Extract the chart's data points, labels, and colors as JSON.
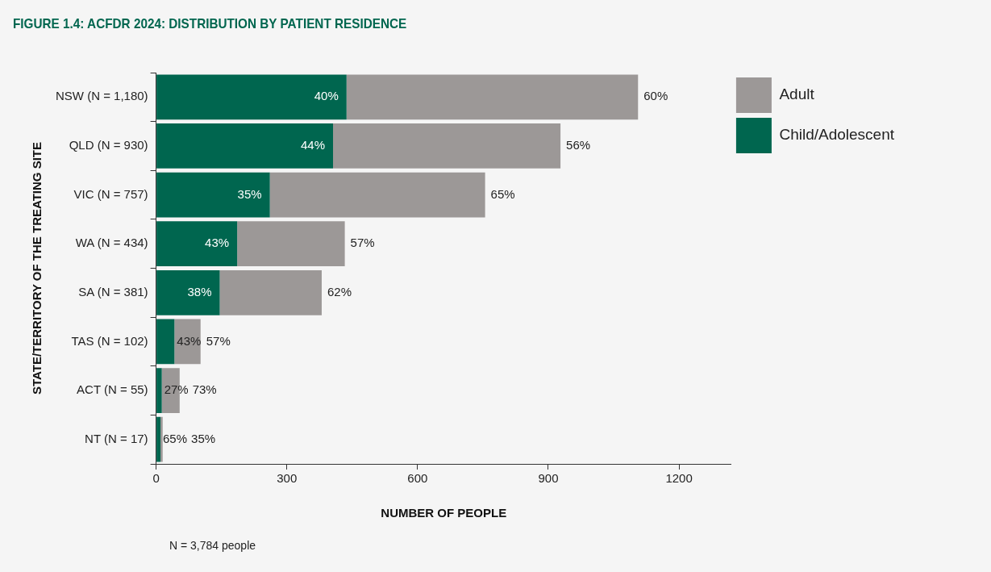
{
  "chart_data": {
    "type": "bar",
    "orientation": "horizontal",
    "stacked": true,
    "title": "FIGURE 1.4: ACFDR 2024: DISTRIBUTION BY PATIENT RESIDENCE",
    "xlabel": "NUMBER OF PEOPLE",
    "ylabel": "STATE/TERRITORY OF THE TREATING SITE",
    "categories": [
      "NSW (N = 1,180)",
      "QLD (N = 930)",
      "VIC (N = 757)",
      "WA (N = 434)",
      "SA (N = 381)",
      "TAS (N = 102)",
      "ACT (N = 55)",
      "NT (N = 17)"
    ],
    "series": [
      {
        "name": "Child/Adolescent",
        "color": "#00664f",
        "values": [
          437,
          406,
          261,
          186,
          146,
          42,
          13,
          10
        ]
      },
      {
        "name": "Adult",
        "color": "#9c9897",
        "values": [
          669,
          522,
          494,
          247,
          234,
          60,
          41,
          5
        ]
      }
    ],
    "xlim": [
      0,
      1320
    ],
    "xticks": [
      0,
      300,
      600,
      900,
      1200
    ],
    "grid": false,
    "legend": "top right",
    "annotations": [
      {
        "text": "40%",
        "x": 437,
        "y": "NSW (N = 1,180)"
      },
      {
        "text": "60%",
        "x": 1106,
        "y": "NSW (N = 1,180)"
      },
      {
        "text": "44%",
        "x": 406,
        "y": "QLD (N = 930)"
      },
      {
        "text": "56%",
        "x": 928,
        "y": "QLD (N = 930)"
      },
      {
        "text": "35%",
        "x": 261,
        "y": "VIC (N = 757)"
      },
      {
        "text": "65%",
        "x": 755,
        "y": "VIC (N = 757)"
      },
      {
        "text": "43%",
        "x": 186,
        "y": "WA (N = 434)"
      },
      {
        "text": "57%",
        "x": 433,
        "y": "WA (N = 434)"
      },
      {
        "text": "38%",
        "x": 146,
        "y": "SA (N = 381)"
      },
      {
        "text": "62%",
        "x": 380,
        "y": "SA (N = 381)"
      },
      {
        "text": "43%",
        "x": 42,
        "y": "TAS (N = 102)"
      },
      {
        "text": "57%",
        "x": 102,
        "y": "TAS (N = 102)"
      },
      {
        "text": "27%",
        "x": 13,
        "y": "ACT (N = 55)"
      },
      {
        "text": "73%",
        "x": 54,
        "y": "ACT (N = 55)"
      },
      {
        "text": "65%",
        "x": 10,
        "y": "NT (N = 17)"
      },
      {
        "text": "35%",
        "x": 15,
        "y": "NT (N = 17)"
      },
      "N = 3,784 people"
    ]
  }
}
